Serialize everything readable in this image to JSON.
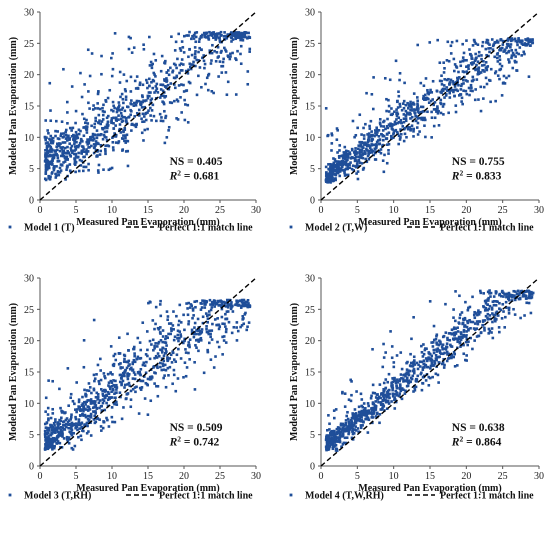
{
  "chart_data": [
    {
      "type": "scatter",
      "xlabel": "Measured Pan Evaporation (mm)",
      "ylabel": "Modeled Pan Evaporation (mm)",
      "xlim": [
        0,
        30
      ],
      "ylim": [
        0,
        30
      ],
      "xticks": [
        "0",
        "5",
        "10",
        "15",
        "20",
        "25",
        "30"
      ],
      "yticks": [
        "0",
        "5",
        "10",
        "15",
        "20",
        "25",
        "30"
      ],
      "stats": {
        "ns_label": "NS = 0.405",
        "r2_prefix": "R",
        "r2_value": " = 0.681"
      },
      "series": [
        {
          "name": "Model 1 (T)",
          "kind": "points",
          "color": "#1f4e99",
          "pattern": {
            "count": 950,
            "intercept": 6.0,
            "slope": 0.62,
            "curve": 0.012,
            "noise": 3.2,
            "floor": 3.2,
            "cap": 26.8,
            "outliers": 0.05,
            "seed": 11
          }
        },
        {
          "name": "Perfect 1:1 match line",
          "kind": "line",
          "color": "#000000",
          "values": [
            [
              0,
              0
            ],
            [
              30,
              30
            ]
          ]
        }
      ],
      "legend": "bottom"
    },
    {
      "type": "scatter",
      "xlabel": "Measured Pan Evaporation (mm)",
      "ylabel": "Modeled Pan Evaporation (mm)",
      "xlim": [
        0,
        30
      ],
      "ylim": [
        0,
        30
      ],
      "xticks": [
        "0",
        "5",
        "10",
        "15",
        "20",
        "25",
        "30"
      ],
      "yticks": [
        "0",
        "5",
        "10",
        "15",
        "20",
        "25",
        "30"
      ],
      "stats": {
        "ns_label": "NS = 0.755",
        "r2_prefix": "R",
        "r2_value": " = 0.833"
      },
      "series": [
        {
          "name": "Model 2 (T,W)",
          "kind": "points",
          "color": "#1f4e99",
          "pattern": {
            "count": 950,
            "intercept": 3.2,
            "slope": 0.82,
            "curve": 0.0,
            "noise": 1.9,
            "floor": 2.8,
            "cap": 25.8,
            "outliers": 0.05,
            "seed": 23
          }
        },
        {
          "name": "Perfect 1:1 match line",
          "kind": "line",
          "color": "#000000",
          "values": [
            [
              0,
              0
            ],
            [
              30,
              30
            ]
          ]
        }
      ],
      "legend": "bottom"
    },
    {
      "type": "scatter",
      "xlabel": "Measured Pan Evaporation (mm)",
      "ylabel": "Modeled Pan Evaporation (mm)",
      "xlim": [
        0,
        30
      ],
      "ylim": [
        0,
        30
      ],
      "xticks": [
        "0",
        "5",
        "10",
        "15",
        "20",
        "25",
        "30"
      ],
      "yticks": [
        "0",
        "5",
        "10",
        "15",
        "20",
        "25",
        "30"
      ],
      "stats": {
        "ns_label": "NS = 0.509",
        "r2_prefix": "R",
        "r2_value": " = 0.742"
      },
      "series": [
        {
          "name": "Model 3 (T,RH)",
          "kind": "points",
          "color": "#1f4e99",
          "pattern": {
            "count": 950,
            "intercept": 3.0,
            "slope": 0.88,
            "curve": 0.0,
            "noise": 2.6,
            "floor": 2.6,
            "cap": 26.5,
            "outliers": 0.06,
            "seed": 37
          }
        },
        {
          "name": "Perfect 1:1 match line",
          "kind": "line",
          "color": "#000000",
          "values": [
            [
              0,
              0
            ],
            [
              30,
              30
            ]
          ]
        }
      ],
      "legend": "bottom"
    },
    {
      "type": "scatter",
      "xlabel": "Measured Pan Evaporation (mm)",
      "ylabel": "Modeled Pan Evaporation (mm)",
      "xlim": [
        0,
        30
      ],
      "ylim": [
        0,
        30
      ],
      "xticks": [
        "0",
        "5",
        "10",
        "15",
        "20",
        "25",
        "30"
      ],
      "yticks": [
        "0",
        "5",
        "10",
        "15",
        "20",
        "25",
        "30"
      ],
      "stats": {
        "ns_label": "NS = 0.638",
        "r2_prefix": "R",
        "r2_value": " = 0.864"
      },
      "series": [
        {
          "name": "Model 4 (T,W,RH)",
          "kind": "points",
          "color": "#1f4e99",
          "pattern": {
            "count": 950,
            "intercept": 2.6,
            "slope": 0.95,
            "curve": 0.0,
            "noise": 1.5,
            "floor": 2.4,
            "cap": 28.0,
            "outliers": 0.06,
            "seed": 53
          }
        },
        {
          "name": "Perfect 1:1 match line",
          "kind": "line",
          "color": "#000000",
          "values": [
            [
              0,
              0
            ],
            [
              30,
              30
            ]
          ]
        }
      ],
      "legend": "bottom"
    }
  ]
}
